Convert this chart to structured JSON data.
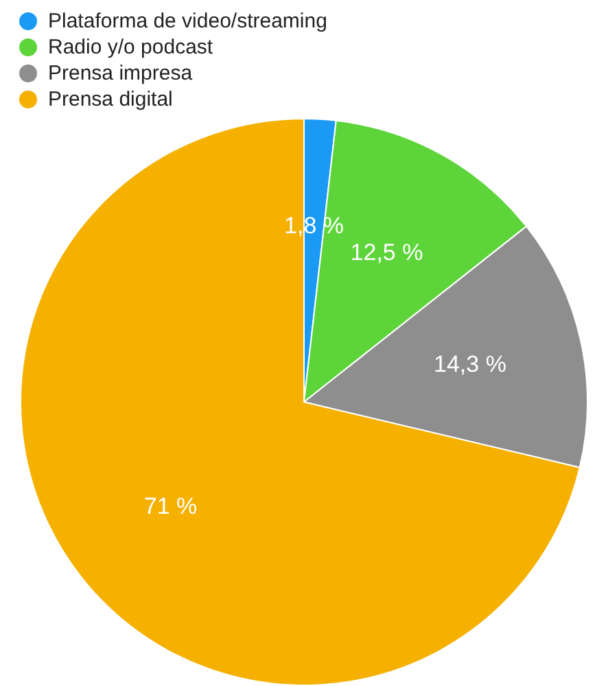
{
  "chart_data": {
    "type": "pie",
    "categories": [
      "Plataforma de video/streaming",
      "Radio y/o podcast",
      "Prensa impresa",
      "Prensa digital"
    ],
    "values": [
      1.8,
      12.5,
      14.3,
      71
    ],
    "colors": [
      "#1a9af5",
      "#5dd53a",
      "#8e8e8e",
      "#f5b000"
    ],
    "value_labels": [
      "1,8 %",
      "12,5 %",
      "14,3 %",
      "71 %"
    ],
    "legend": "top left"
  }
}
